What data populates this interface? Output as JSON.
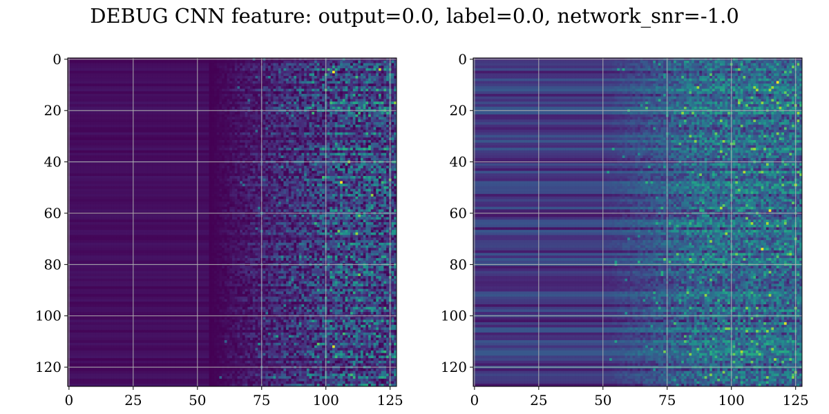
{
  "figure": {
    "title": "DEBUG CNN feature: output=0.0, label=0.0, network_snr=-1.0"
  },
  "chart_data": [
    {
      "type": "heatmap",
      "colormap": "viridis",
      "grid": true,
      "grid_color": "#b0b0b0",
      "xlim": [
        -0.5,
        127.5
      ],
      "ylim": [
        127.5,
        -0.5
      ],
      "x_ticks": [
        0,
        25,
        50,
        75,
        100,
        125
      ],
      "y_ticks": [
        0,
        20,
        40,
        60,
        80,
        100,
        120
      ],
      "x_tick_labels": [
        "0",
        "25",
        "50",
        "75",
        "100",
        "125"
      ],
      "y_tick_labels": [
        "0",
        "20",
        "40",
        "60",
        "80",
        "100",
        "120"
      ],
      "matrix_shape": [
        128,
        128
      ],
      "value_range": [
        0,
        1
      ],
      "pattern": "near-zero (dark purple) for columns 0 to about 55; noisy horizontal streaks of teal/green with occasional yellow for columns about 60 to 127",
      "notable_values": [
        {
          "row": 5,
          "col": 103,
          "value": 1.0
        },
        {
          "row": 48,
          "col": 106,
          "value": 1.0
        },
        {
          "row": 112,
          "col": 103,
          "value": 0.95
        }
      ]
    },
    {
      "type": "heatmap",
      "colormap": "viridis",
      "grid": true,
      "grid_color": "#b0b0b0",
      "xlim": [
        -0.5,
        127.5
      ],
      "ylim": [
        127.5,
        -0.5
      ],
      "x_ticks": [
        0,
        25,
        50,
        75,
        100,
        125
      ],
      "y_ticks": [
        0,
        20,
        40,
        60,
        80,
        100,
        120
      ],
      "x_tick_labels": [
        "0",
        "25",
        "50",
        "75",
        "100",
        "125"
      ],
      "y_tick_labels": [
        "0",
        "20",
        "40",
        "60",
        "80",
        "100",
        "120"
      ],
      "matrix_shape": [
        128,
        128
      ],
      "value_range": [
        0,
        1
      ],
      "pattern": "horizontal bands of dark blue/purple across all columns; dense noisy speckle of teal/green with scattered yellow for columns about 70 to 127",
      "notable_values": [
        {
          "row": 9,
          "col": 118,
          "value": 1.0
        },
        {
          "row": 59,
          "col": 115,
          "value": 1.0
        },
        {
          "row": 74,
          "col": 112,
          "value": 1.0
        },
        {
          "row": 103,
          "col": 121,
          "value": 0.95
        }
      ]
    }
  ]
}
